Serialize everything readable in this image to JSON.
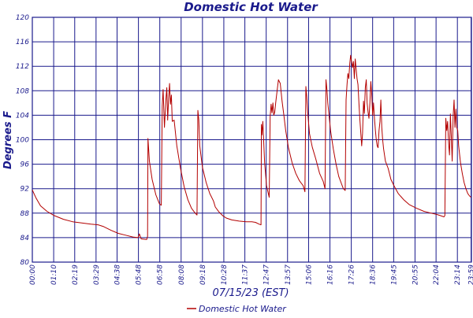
{
  "chart_data": {
    "type": "line",
    "title": "Domestic Hot Water",
    "xlabel": "07/15/23 (EST)",
    "ylabel": "Degrees F",
    "ylim": [
      80,
      120
    ],
    "xlim": [
      0,
      24
    ],
    "grid": true,
    "legend_position": "bottom-center",
    "colors": {
      "axis": "#1a1a8c",
      "grid": "#1a1a8c",
      "series": "#b30000",
      "background": "#ffffff"
    },
    "y_ticks": [
      "80",
      "84",
      "88",
      "92",
      "96",
      "100",
      "104",
      "108",
      "112",
      "116",
      "120"
    ],
    "x_ticks": [
      {
        "hour": 0.0,
        "label": "00:00"
      },
      {
        "hour": 1.167,
        "label": "01:10"
      },
      {
        "hour": 2.317,
        "label": "02:19"
      },
      {
        "hour": 3.483,
        "label": "03:29"
      },
      {
        "hour": 4.633,
        "label": "04:38"
      },
      {
        "hour": 5.8,
        "label": "05:48"
      },
      {
        "hour": 6.967,
        "label": "06:58"
      },
      {
        "hour": 8.133,
        "label": "08:08"
      },
      {
        "hour": 9.3,
        "label": "09:18"
      },
      {
        "hour": 10.467,
        "label": "10:28"
      },
      {
        "hour": 11.617,
        "label": "11:37"
      },
      {
        "hour": 12.783,
        "label": "12:47"
      },
      {
        "hour": 13.95,
        "label": "13:57"
      },
      {
        "hour": 15.1,
        "label": "15:06"
      },
      {
        "hour": 16.267,
        "label": "16:16"
      },
      {
        "hour": 17.433,
        "label": "17:26"
      },
      {
        "hour": 18.6,
        "label": "18:36"
      },
      {
        "hour": 19.75,
        "label": "19:45"
      },
      {
        "hour": 20.917,
        "label": "20:55"
      },
      {
        "hour": 22.067,
        "label": "22:04"
      },
      {
        "hour": 23.233,
        "label": "23:14"
      },
      {
        "hour": 23.983,
        "label": "23:59"
      }
    ],
    "series": [
      {
        "name": "Domestic Hot Water",
        "points": [
          [
            0.0,
            91.8
          ],
          [
            0.2,
            90.5
          ],
          [
            0.45,
            89.2
          ],
          [
            0.8,
            88.3
          ],
          [
            1.2,
            87.6
          ],
          [
            1.7,
            87.0
          ],
          [
            2.2,
            86.6
          ],
          [
            2.7,
            86.4
          ],
          [
            3.2,
            86.2
          ],
          [
            3.6,
            86.1
          ],
          [
            3.9,
            85.8
          ],
          [
            4.3,
            85.2
          ],
          [
            4.7,
            84.7
          ],
          [
            5.1,
            84.4
          ],
          [
            5.5,
            84.1
          ],
          [
            5.78,
            84.0
          ],
          [
            5.85,
            84.6
          ],
          [
            5.95,
            83.8
          ],
          [
            6.25,
            83.7
          ],
          [
            6.3,
            84.2
          ],
          [
            6.32,
            100.2
          ],
          [
            6.35,
            98.8
          ],
          [
            6.4,
            96.5
          ],
          [
            6.55,
            93.5
          ],
          [
            6.75,
            91.0
          ],
          [
            6.95,
            89.5
          ],
          [
            7.05,
            89.3
          ],
          [
            7.1,
            105.5
          ],
          [
            7.15,
            108.2
          ],
          [
            7.22,
            102.0
          ],
          [
            7.3,
            106.5
          ],
          [
            7.35,
            108.5
          ],
          [
            7.4,
            103.2
          ],
          [
            7.45,
            106.8
          ],
          [
            7.5,
            109.2
          ],
          [
            7.55,
            105.8
          ],
          [
            7.6,
            107.3
          ],
          [
            7.65,
            103.0
          ],
          [
            7.75,
            103.2
          ],
          [
            7.9,
            99.0
          ],
          [
            8.1,
            95.3
          ],
          [
            8.3,
            92.3
          ],
          [
            8.5,
            90.2
          ],
          [
            8.7,
            88.8
          ],
          [
            8.9,
            88.0
          ],
          [
            9.0,
            87.7
          ],
          [
            9.05,
            104.8
          ],
          [
            9.1,
            103.2
          ],
          [
            9.15,
            99.0
          ],
          [
            9.3,
            95.5
          ],
          [
            9.5,
            93.0
          ],
          [
            9.7,
            91.2
          ],
          [
            9.9,
            90.0
          ],
          [
            10.0,
            89.0
          ],
          [
            10.2,
            88.2
          ],
          [
            10.4,
            87.6
          ],
          [
            10.6,
            87.2
          ],
          [
            10.9,
            86.9
          ],
          [
            11.3,
            86.7
          ],
          [
            11.7,
            86.6
          ],
          [
            12.0,
            86.6
          ],
          [
            12.2,
            86.5
          ],
          [
            12.4,
            86.2
          ],
          [
            12.5,
            86.1
          ],
          [
            12.52,
            102.5
          ],
          [
            12.55,
            100.8
          ],
          [
            12.6,
            103.0
          ],
          [
            12.7,
            96.2
          ],
          [
            12.8,
            92.5
          ],
          [
            12.9,
            91.2
          ],
          [
            12.95,
            90.6
          ],
          [
            13.0,
            103.8
          ],
          [
            13.05,
            105.8
          ],
          [
            13.1,
            104.4
          ],
          [
            13.15,
            106.0
          ],
          [
            13.2,
            104.0
          ],
          [
            13.25,
            104.5
          ],
          [
            13.3,
            106.0
          ],
          [
            13.38,
            108.0
          ],
          [
            13.45,
            109.8
          ],
          [
            13.55,
            109.2
          ],
          [
            13.65,
            106.3
          ],
          [
            13.75,
            104.0
          ],
          [
            13.85,
            101.5
          ],
          [
            14.0,
            98.7
          ],
          [
            14.2,
            96.2
          ],
          [
            14.4,
            94.5
          ],
          [
            14.6,
            93.3
          ],
          [
            14.8,
            92.5
          ],
          [
            14.9,
            91.5
          ],
          [
            14.95,
            108.7
          ],
          [
            15.0,
            107.0
          ],
          [
            15.05,
            104.5
          ],
          [
            15.15,
            101.0
          ],
          [
            15.3,
            98.8
          ],
          [
            15.5,
            96.8
          ],
          [
            15.7,
            94.5
          ],
          [
            15.9,
            93.2
          ],
          [
            16.0,
            92.0
          ],
          [
            16.05,
            109.8
          ],
          [
            16.1,
            108.2
          ],
          [
            16.15,
            106.0
          ],
          [
            16.2,
            104.5
          ],
          [
            16.3,
            101.5
          ],
          [
            16.45,
            98.5
          ],
          [
            16.6,
            96.0
          ],
          [
            16.75,
            94.0
          ],
          [
            16.9,
            92.8
          ],
          [
            17.0,
            92.0
          ],
          [
            17.1,
            91.7
          ],
          [
            17.15,
            106.5
          ],
          [
            17.2,
            109.0
          ],
          [
            17.25,
            110.8
          ],
          [
            17.3,
            110.0
          ],
          [
            17.35,
            112.5
          ],
          [
            17.4,
            113.8
          ],
          [
            17.45,
            112.7
          ],
          [
            17.5,
            111.8
          ],
          [
            17.55,
            112.8
          ],
          [
            17.6,
            110.0
          ],
          [
            17.65,
            113.2
          ],
          [
            17.7,
            111.5
          ],
          [
            17.75,
            110.0
          ],
          [
            17.8,
            109.0
          ],
          [
            17.85,
            106.0
          ],
          [
            17.9,
            103.5
          ],
          [
            18.0,
            99.0
          ],
          [
            18.05,
            101.0
          ],
          [
            18.1,
            106.3
          ],
          [
            18.15,
            104.3
          ],
          [
            18.2,
            108.5
          ],
          [
            18.25,
            109.8
          ],
          [
            18.3,
            106.0
          ],
          [
            18.35,
            104.5
          ],
          [
            18.4,
            103.5
          ],
          [
            18.45,
            106.0
          ],
          [
            18.5,
            109.5
          ],
          [
            18.55,
            107.5
          ],
          [
            18.6,
            104.0
          ],
          [
            18.65,
            106.0
          ],
          [
            18.7,
            103.5
          ],
          [
            18.75,
            101.5
          ],
          [
            18.8,
            100.0
          ],
          [
            18.85,
            99.0
          ],
          [
            18.9,
            98.7
          ],
          [
            18.95,
            101.5
          ],
          [
            19.0,
            103.0
          ],
          [
            19.05,
            106.5
          ],
          [
            19.1,
            102.0
          ],
          [
            19.15,
            100.0
          ],
          [
            19.2,
            98.5
          ],
          [
            19.3,
            96.5
          ],
          [
            19.45,
            95.3
          ],
          [
            19.6,
            93.5
          ],
          [
            19.8,
            92.3
          ],
          [
            20.0,
            91.2
          ],
          [
            20.3,
            90.2
          ],
          [
            20.6,
            89.4
          ],
          [
            21.0,
            88.8
          ],
          [
            21.4,
            88.3
          ],
          [
            21.8,
            88.0
          ],
          [
            22.1,
            87.8
          ],
          [
            22.3,
            87.6
          ],
          [
            22.5,
            87.4
          ],
          [
            22.55,
            87.6
          ],
          [
            22.6,
            103.5
          ],
          [
            22.65,
            101.5
          ],
          [
            22.7,
            103.0
          ],
          [
            22.75,
            99.5
          ],
          [
            22.8,
            97.5
          ],
          [
            22.85,
            104.2
          ],
          [
            22.9,
            100.5
          ],
          [
            22.95,
            96.5
          ],
          [
            23.0,
            103.8
          ],
          [
            23.05,
            106.5
          ],
          [
            23.1,
            102.0
          ],
          [
            23.15,
            105.0
          ],
          [
            23.2,
            102.0
          ],
          [
            23.25,
            101.5
          ],
          [
            23.3,
            99.0
          ],
          [
            23.4,
            96.3
          ],
          [
            23.5,
            94.5
          ],
          [
            23.6,
            93.0
          ],
          [
            23.7,
            92.0
          ],
          [
            23.8,
            91.2
          ],
          [
            23.9,
            90.8
          ],
          [
            23.98,
            90.6
          ]
        ]
      }
    ]
  }
}
